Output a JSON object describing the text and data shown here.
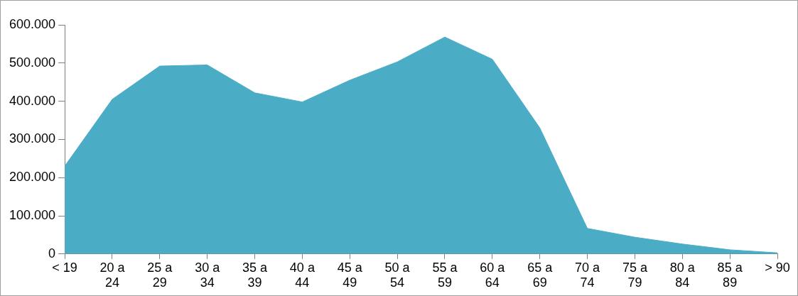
{
  "chart_data": {
    "type": "area",
    "categories": [
      "< 19",
      "20 a 24",
      "25 a 29",
      "30 a 34",
      "35 a 39",
      "40 a 44",
      "45 a 49",
      "50 a 54",
      "55 a 59",
      "60 a 64",
      "65 a 69",
      "70 a 74",
      "75 a 79",
      "80 a 84",
      "85 a 89",
      "> 90"
    ],
    "values": [
      230000,
      405000,
      492000,
      495000,
      422000,
      398000,
      455000,
      503000,
      568000,
      510000,
      330000,
      67000,
      44000,
      26000,
      11000,
      3000
    ],
    "color": "#4bacc6",
    "ylim": [
      0,
      600000
    ],
    "yticks": [
      {
        "value": 0,
        "label": "0"
      },
      {
        "value": 100000,
        "label": "100.000"
      },
      {
        "value": 200000,
        "label": "200.000"
      },
      {
        "value": 300000,
        "label": "300.000"
      },
      {
        "value": 400000,
        "label": "400.000"
      },
      {
        "value": 500000,
        "label": "500.000"
      },
      {
        "value": 600000,
        "label": "600.000"
      }
    ],
    "grid": false,
    "legend": false
  }
}
